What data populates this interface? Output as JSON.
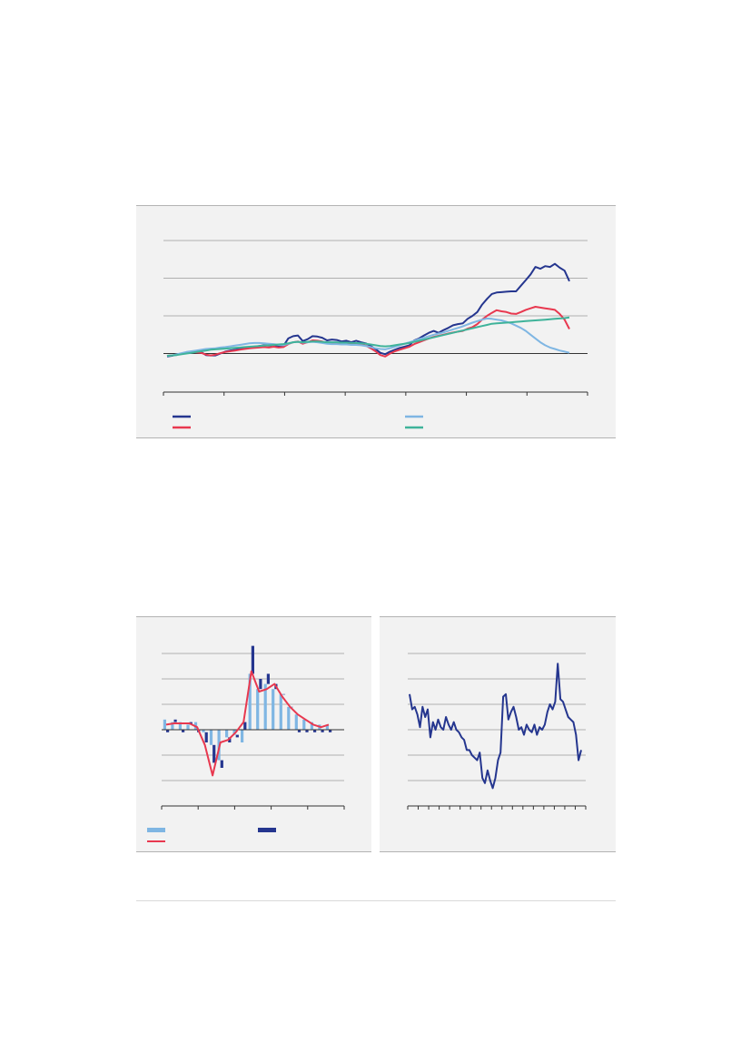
{
  "colors": {
    "dark_blue": "#25368f",
    "red": "#e8384f",
    "light_blue": "#7fb6e3",
    "teal": "#3fb39a",
    "grid": "#9a9a9a",
    "axis": "#333333"
  },
  "chart_data": [
    {
      "type": "line",
      "title": "",
      "grid": true,
      "y_gridlines": 4,
      "x_tick_count": 8,
      "legend": {
        "placement": "bottom",
        "entries": [
          {
            "color": "#25368f",
            "label": ""
          },
          {
            "color": "#e8384f",
            "label": ""
          },
          {
            "color": "#7fb6e3",
            "label": ""
          },
          {
            "color": "#3fb39a",
            "label": ""
          }
        ]
      },
      "ylim": [
        -1,
        3
      ],
      "series": [
        {
          "color": "#25368f",
          "values": [
            -0.08,
            -0.06,
            -0.03,
            0.0,
            0.02,
            0.05,
            0.03,
            0.04,
            -0.04,
            -0.05,
            -0.05,
            0.0,
            0.05,
            0.08,
            0.1,
            0.12,
            0.14,
            0.17,
            0.18,
            0.2,
            0.22,
            0.21,
            0.23,
            0.2,
            0.2,
            0.4,
            0.46,
            0.48,
            0.33,
            0.38,
            0.46,
            0.45,
            0.42,
            0.35,
            0.37,
            0.36,
            0.32,
            0.34,
            0.3,
            0.34,
            0.3,
            0.27,
            0.2,
            0.12,
            0.02,
            -0.02,
            0.05,
            0.1,
            0.15,
            0.18,
            0.22,
            0.35,
            0.4,
            0.48,
            0.55,
            0.6,
            0.55,
            0.62,
            0.68,
            0.75,
            0.78,
            0.8,
            0.92,
            1.0,
            1.1,
            1.3,
            1.45,
            1.58,
            1.62,
            1.63,
            1.64,
            1.65,
            1.65,
            1.8,
            1.95,
            2.1,
            2.3,
            2.25,
            2.32,
            2.3,
            2.38,
            2.28,
            2.2,
            1.92
          ]
        },
        {
          "color": "#e8384f",
          "values": [
            -0.06,
            -0.05,
            -0.03,
            0.0,
            0.02,
            0.04,
            0.03,
            0.02,
            -0.03,
            -0.05,
            -0.03,
            0.01,
            0.04,
            0.06,
            0.08,
            0.1,
            0.12,
            0.14,
            0.15,
            0.16,
            0.17,
            0.16,
            0.18,
            0.16,
            0.17,
            0.25,
            0.3,
            0.32,
            0.26,
            0.3,
            0.35,
            0.34,
            0.32,
            0.27,
            0.28,
            0.28,
            0.25,
            0.27,
            0.24,
            0.27,
            0.24,
            0.21,
            0.14,
            0.06,
            -0.04,
            -0.08,
            0.0,
            0.06,
            0.1,
            0.14,
            0.18,
            0.25,
            0.3,
            0.35,
            0.4,
            0.44,
            0.47,
            0.5,
            0.53,
            0.56,
            0.58,
            0.6,
            0.66,
            0.7,
            0.78,
            0.9,
            1.0,
            1.08,
            1.15,
            1.12,
            1.1,
            1.06,
            1.05,
            1.1,
            1.16,
            1.2,
            1.24,
            1.22,
            1.2,
            1.18,
            1.16,
            1.05,
            0.9,
            0.65
          ]
        },
        {
          "color": "#7fb6e3",
          "values": [
            -0.06,
            -0.05,
            -0.02,
            0.01,
            0.04,
            0.06,
            0.08,
            0.1,
            0.12,
            0.13,
            0.14,
            0.16,
            0.17,
            0.19,
            0.21,
            0.23,
            0.25,
            0.27,
            0.28,
            0.28,
            0.27,
            0.26,
            0.25,
            0.23,
            0.22,
            0.26,
            0.3,
            0.31,
            0.29,
            0.3,
            0.31,
            0.3,
            0.28,
            0.26,
            0.25,
            0.25,
            0.24,
            0.24,
            0.23,
            0.23,
            0.22,
            0.2,
            0.17,
            0.14,
            0.12,
            0.11,
            0.14,
            0.18,
            0.22,
            0.26,
            0.3,
            0.34,
            0.38,
            0.42,
            0.46,
            0.5,
            0.53,
            0.56,
            0.6,
            0.64,
            0.68,
            0.72,
            0.77,
            0.82,
            0.86,
            0.9,
            0.93,
            0.92,
            0.9,
            0.88,
            0.84,
            0.8,
            0.74,
            0.68,
            0.6,
            0.5,
            0.4,
            0.3,
            0.22,
            0.16,
            0.12,
            0.08,
            0.05,
            0.02
          ]
        },
        {
          "color": "#3fb39a",
          "values": [
            -0.06,
            -0.05,
            -0.04,
            -0.02,
            0.0,
            0.02,
            0.04,
            0.06,
            0.08,
            0.1,
            0.11,
            0.12,
            0.13,
            0.14,
            0.15,
            0.16,
            0.17,
            0.18,
            0.19,
            0.2,
            0.21,
            0.22,
            0.23,
            0.24,
            0.25,
            0.27,
            0.3,
            0.31,
            0.3,
            0.31,
            0.32,
            0.32,
            0.31,
            0.3,
            0.3,
            0.3,
            0.29,
            0.29,
            0.28,
            0.28,
            0.27,
            0.26,
            0.24,
            0.22,
            0.2,
            0.19,
            0.2,
            0.22,
            0.24,
            0.26,
            0.28,
            0.31,
            0.34,
            0.37,
            0.4,
            0.43,
            0.46,
            0.49,
            0.52,
            0.55,
            0.58,
            0.61,
            0.64,
            0.67,
            0.7,
            0.73,
            0.76,
            0.79,
            0.8,
            0.81,
            0.82,
            0.83,
            0.84,
            0.85,
            0.86,
            0.87,
            0.88,
            0.89,
            0.9,
            0.91,
            0.92,
            0.93,
            0.94,
            0.96
          ]
        }
      ]
    },
    {
      "type": "bar",
      "title": "",
      "grid": true,
      "y_gridlines": 6,
      "x_tick_count": 6,
      "legend": {
        "placement": "bottom",
        "entries": [
          {
            "color": "#7fb6e3",
            "label": ""
          },
          {
            "color": "#25368f",
            "label": ""
          },
          {
            "color": "#e8384f",
            "label": ""
          }
        ]
      },
      "ylim": [
        -3,
        3
      ],
      "series": [
        {
          "color": "#7fb6e3",
          "stack": true,
          "values": [
            0.4,
            0.3,
            0.3,
            0.2,
            0.3,
            -0.1,
            -0.6,
            -1.2,
            -0.3,
            -0.2,
            -0.5,
            2.2,
            1.6,
            1.8,
            1.6,
            1.4,
            0.9,
            0.6,
            0.4,
            0.3,
            0.2,
            0.2
          ]
        },
        {
          "color": "#25368f",
          "stack": true,
          "values": [
            -0.1,
            0.1,
            -0.1,
            0.1,
            -0.1,
            -0.4,
            -0.7,
            -0.3,
            -0.2,
            -0.1,
            0.3,
            1.1,
            0.4,
            0.4,
            0.2,
            0.0,
            0.0,
            -0.1,
            -0.1,
            -0.1,
            -0.1,
            -0.1
          ]
        },
        {
          "color": "#e8384f",
          "type": "line",
          "values": [
            0.2,
            0.25,
            0.25,
            0.25,
            0.1,
            -0.6,
            -1.8,
            -0.5,
            -0.4,
            -0.1,
            0.3,
            2.3,
            1.5,
            1.6,
            1.8,
            1.3,
            0.9,
            0.6,
            0.4,
            0.2,
            0.1,
            0.2
          ]
        }
      ]
    },
    {
      "type": "line",
      "title": "",
      "grid": true,
      "y_gridlines": 6,
      "x_tick_count": 18,
      "ylim": [
        -3,
        3
      ],
      "series": [
        {
          "color": "#25368f",
          "values": [
            1.4,
            0.8,
            0.9,
            0.6,
            0.1,
            0.9,
            0.5,
            0.8,
            -0.3,
            0.3,
            0.0,
            0.4,
            0.1,
            0.0,
            0.5,
            0.2,
            0.0,
            0.3,
            0.0,
            -0.1,
            -0.3,
            -0.4,
            -0.8,
            -0.8,
            -1.0,
            -1.1,
            -1.2,
            -0.9,
            -1.9,
            -2.1,
            -1.6,
            -2.0,
            -2.3,
            -1.9,
            -1.2,
            -0.9,
            1.3,
            1.4,
            0.4,
            0.7,
            0.9,
            0.5,
            0.0,
            0.1,
            -0.2,
            0.2,
            0.0,
            -0.1,
            0.2,
            -0.2,
            0.1,
            0.0,
            0.2,
            0.7,
            1.0,
            0.8,
            1.1,
            2.6,
            1.2,
            1.1,
            0.8,
            0.5,
            0.4,
            0.3,
            -0.2,
            -1.2,
            -0.8
          ]
        }
      ]
    }
  ]
}
